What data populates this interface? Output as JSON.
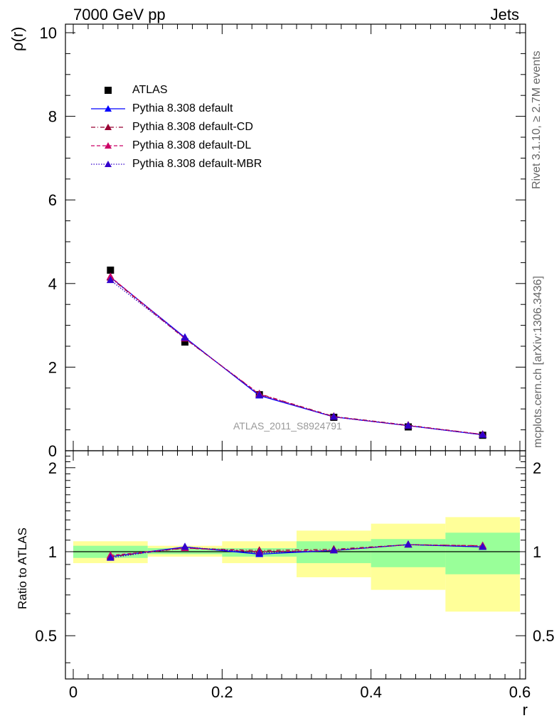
{
  "header": {
    "left": "7000 GeV pp",
    "right": "Jets"
  },
  "side_labels": {
    "rivet": "Rivet 3.1.10, ≥ 2.7M events",
    "mcplots": "mcplots.cern.ch [arXiv:1306.3436]"
  },
  "watermark": "ATLAS_2011_S8924791",
  "chart_data": [
    {
      "type": "line",
      "ylabel": "ρ(r)",
      "xlim": [
        0,
        0.6
      ],
      "ylim": [
        0,
        10
      ],
      "y_ticks": [
        "0",
        "2",
        "4",
        "6",
        "8",
        "10"
      ],
      "x": [
        0.05,
        0.15,
        0.25,
        0.35,
        0.45,
        0.55
      ],
      "series": [
        {
          "name": "ATLAS",
          "values": [
            4.32,
            2.6,
            1.34,
            0.8,
            0.57,
            0.37
          ],
          "color": "#000000",
          "style": "marker"
        },
        {
          "name": "Pythia 8.308 default",
          "values": [
            4.15,
            2.71,
            1.32,
            0.81,
            0.6,
            0.38
          ],
          "color": "#0000ff",
          "style": "solid"
        },
        {
          "name": "Pythia 8.308 default-CD",
          "values": [
            4.14,
            2.68,
            1.36,
            0.82,
            0.61,
            0.39
          ],
          "color": "#990033",
          "style": "dashdot"
        },
        {
          "name": "Pythia 8.308 default-DL",
          "values": [
            4.16,
            2.69,
            1.35,
            0.81,
            0.6,
            0.39
          ],
          "color": "#cc0066",
          "style": "dashed"
        },
        {
          "name": "Pythia 8.308 default-MBR",
          "values": [
            4.08,
            2.7,
            1.33,
            0.81,
            0.6,
            0.38
          ],
          "color": "#3300cc",
          "style": "dotted"
        }
      ]
    },
    {
      "type": "line",
      "ylabel": "Ratio to ATLAS",
      "xlabel": "r",
      "xlim": [
        0,
        0.6
      ],
      "ylim": [
        0.35,
        2.3
      ],
      "y_ticks": [
        "0.5",
        "1",
        "2"
      ],
      "x_ticks": [
        "0",
        "0.2",
        "0.4",
        "0.6"
      ],
      "x": [
        0.05,
        0.15,
        0.25,
        0.35,
        0.45,
        0.55
      ],
      "bands": {
        "edges": [
          0,
          0.1,
          0.2,
          0.3,
          0.4,
          0.5,
          0.6
        ],
        "green": [
          [
            0.95,
            1.05
          ],
          [
            0.98,
            1.03
          ],
          [
            0.96,
            1.03
          ],
          [
            0.91,
            1.09
          ],
          [
            0.88,
            1.11
          ],
          [
            0.83,
            1.17
          ]
        ],
        "yellow": [
          [
            0.91,
            1.09
          ],
          [
            0.96,
            1.05
          ],
          [
            0.91,
            1.09
          ],
          [
            0.81,
            1.19
          ],
          [
            0.73,
            1.26
          ],
          [
            0.61,
            1.33
          ]
        ]
      },
      "series": [
        {
          "name": "Pythia 8.308 default",
          "values": [
            0.96,
            1.04,
            0.98,
            1.01,
            1.06,
            1.04
          ],
          "color": "#0000ff",
          "style": "solid"
        },
        {
          "name": "Pythia 8.308 default-CD",
          "values": [
            0.96,
            1.03,
            1.01,
            1.02,
            1.06,
            1.05
          ],
          "color": "#990033",
          "style": "dashdot"
        },
        {
          "name": "Pythia 8.308 default-DL",
          "values": [
            0.97,
            1.03,
            1.0,
            1.01,
            1.06,
            1.05
          ],
          "color": "#cc0066",
          "style": "dashed"
        },
        {
          "name": "Pythia 8.308 default-MBR",
          "values": [
            0.95,
            1.04,
            0.99,
            1.01,
            1.06,
            1.04
          ],
          "color": "#3300cc",
          "style": "dotted"
        }
      ]
    }
  ]
}
